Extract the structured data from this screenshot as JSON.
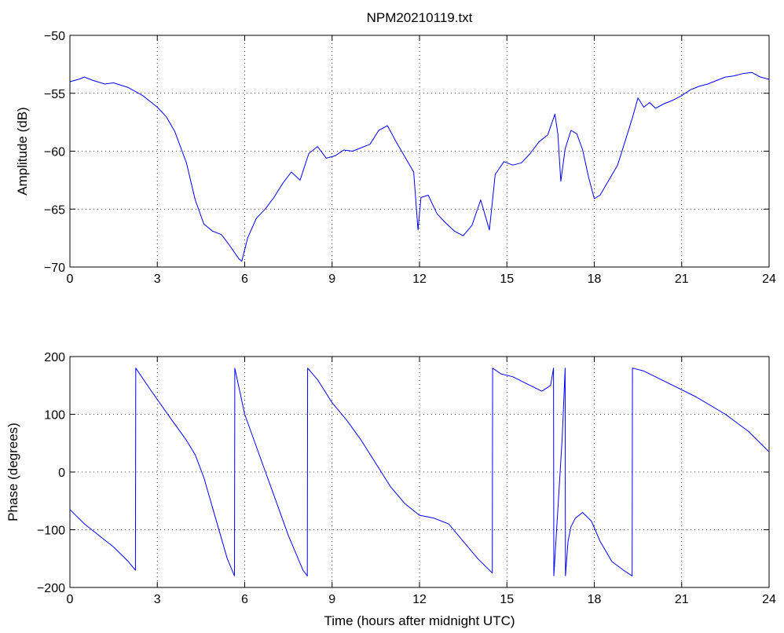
{
  "chart_data": [
    {
      "type": "line",
      "title": "NPM20210119.txt",
      "ylabel": "Amplitude (dB)",
      "xlabel": "",
      "xlim": [
        0,
        24
      ],
      "ylim": [
        -70,
        -50
      ],
      "xticks": [
        0,
        3,
        6,
        9,
        12,
        15,
        18,
        21,
        24
      ],
      "yticks": [
        -70,
        -65,
        -60,
        -55,
        -50
      ],
      "xtick_labels": [
        "0",
        "3",
        "6",
        "9",
        "12",
        "15",
        "18",
        "21",
        "24"
      ],
      "ytick_labels": [
        "−70",
        "−65",
        "−60",
        "−55",
        "−50"
      ],
      "grid": true,
      "color": "#0000ff",
      "series": [
        {
          "x": [
            0,
            0.3,
            0.5,
            0.8,
            1.2,
            1.5,
            2.0,
            2.5,
            3.0,
            3.3,
            3.6,
            4.0,
            4.3,
            4.6,
            4.9,
            5.2,
            5.5,
            5.8,
            5.9,
            6.1,
            6.4,
            6.7,
            7.0,
            7.3,
            7.6,
            7.9,
            8.2,
            8.5,
            8.8,
            9.1,
            9.4,
            9.7,
            10.0,
            10.3,
            10.6,
            10.9,
            11.2,
            11.5,
            11.8,
            11.95,
            12.05,
            12.3,
            12.6,
            12.9,
            13.2,
            13.5,
            13.8,
            14.1,
            14.4,
            14.6,
            14.9,
            15.2,
            15.5,
            15.8,
            16.1,
            16.4,
            16.65,
            16.75,
            16.85,
            17.0,
            17.2,
            17.4,
            17.6,
            17.8,
            18.0,
            18.2,
            18.5,
            18.8,
            19.1,
            19.3,
            19.5,
            19.7,
            19.9,
            20.1,
            20.4,
            20.7,
            21.0,
            21.3,
            21.6,
            21.9,
            22.2,
            22.5,
            22.8,
            23.1,
            23.4,
            23.7,
            24.0
          ],
          "y": [
            -54.0,
            -53.8,
            -53.6,
            -53.9,
            -54.2,
            -54.1,
            -54.5,
            -55.2,
            -56.2,
            -57.0,
            -58.3,
            -61.0,
            -64.2,
            -66.3,
            -66.9,
            -67.2,
            -68.2,
            -69.3,
            -69.5,
            -67.5,
            -65.8,
            -65.0,
            -64.0,
            -62.8,
            -61.8,
            -62.5,
            -60.2,
            -59.6,
            -60.6,
            -60.4,
            -59.9,
            -60.0,
            -59.7,
            -59.4,
            -58.2,
            -57.8,
            -59.2,
            -60.5,
            -61.8,
            -66.8,
            -64.0,
            -63.8,
            -65.4,
            -66.2,
            -66.9,
            -67.3,
            -66.4,
            -64.2,
            -66.8,
            -62.0,
            -60.9,
            -61.2,
            -61.0,
            -60.2,
            -59.2,
            -58.6,
            -56.8,
            -58.5,
            -62.6,
            -59.8,
            -58.2,
            -58.5,
            -59.9,
            -62.2,
            -64.1,
            -63.8,
            -62.5,
            -61.2,
            -58.8,
            -57.2,
            -55.4,
            -56.2,
            -55.8,
            -56.3,
            -55.9,
            -55.6,
            -55.2,
            -54.7,
            -54.4,
            -54.2,
            -53.9,
            -53.6,
            -53.5,
            -53.3,
            -53.2,
            -53.6,
            -53.8
          ]
        }
      ]
    },
    {
      "type": "line",
      "title": "",
      "ylabel": "Phase (degrees)",
      "xlabel": "Time (hours after midnight UTC)",
      "xlim": [
        0,
        24
      ],
      "ylim": [
        -200,
        200
      ],
      "xticks": [
        0,
        3,
        6,
        9,
        12,
        15,
        18,
        21,
        24
      ],
      "yticks": [
        -200,
        -100,
        0,
        100,
        200
      ],
      "xtick_labels": [
        "0",
        "3",
        "6",
        "9",
        "12",
        "15",
        "18",
        "21",
        "24"
      ],
      "ytick_labels": [
        "−200",
        "−100",
        "0",
        "100",
        "200"
      ],
      "grid": true,
      "color": "#0000ff",
      "series": [
        {
          "x": [
            0,
            0.3,
            0.5,
            1.0,
            1.5,
            2.0,
            2.25,
            2.26,
            2.8,
            3.5,
            4.0,
            4.3,
            4.6,
            5.0,
            5.4,
            5.65,
            5.66,
            6.0,
            6.5,
            7.0,
            7.5,
            8.0,
            8.15,
            8.16,
            8.5,
            9.0,
            9.5,
            10.0,
            10.5,
            11.0,
            11.5,
            12.0,
            12.5,
            13.0,
            13.5,
            14.0,
            14.3,
            14.5,
            14.51,
            14.8,
            15.2,
            15.8,
            16.2,
            16.5,
            16.6,
            16.61,
            16.9,
            17.0,
            17.01,
            17.1,
            17.2,
            17.35,
            17.6,
            17.9,
            18.2,
            18.6,
            19.0,
            19.3,
            19.31,
            19.7,
            20.5,
            21.5,
            22.5,
            23.3,
            24.0
          ],
          "y": [
            -65,
            -80,
            -90,
            -110,
            -130,
            -155,
            -170,
            180,
            140,
            90,
            55,
            30,
            -10,
            -80,
            -150,
            -180,
            180,
            100,
            30,
            -40,
            -110,
            -170,
            -180,
            180,
            160,
            120,
            90,
            55,
            15,
            -25,
            -55,
            -75,
            -80,
            -90,
            -120,
            -150,
            -165,
            -175,
            180,
            170,
            165,
            150,
            140,
            150,
            180,
            -180,
            60,
            180,
            -180,
            -120,
            -95,
            -80,
            -70,
            -85,
            -120,
            -155,
            -170,
            -180,
            180,
            175,
            155,
            130,
            100,
            70,
            35
          ]
        }
      ]
    }
  ]
}
